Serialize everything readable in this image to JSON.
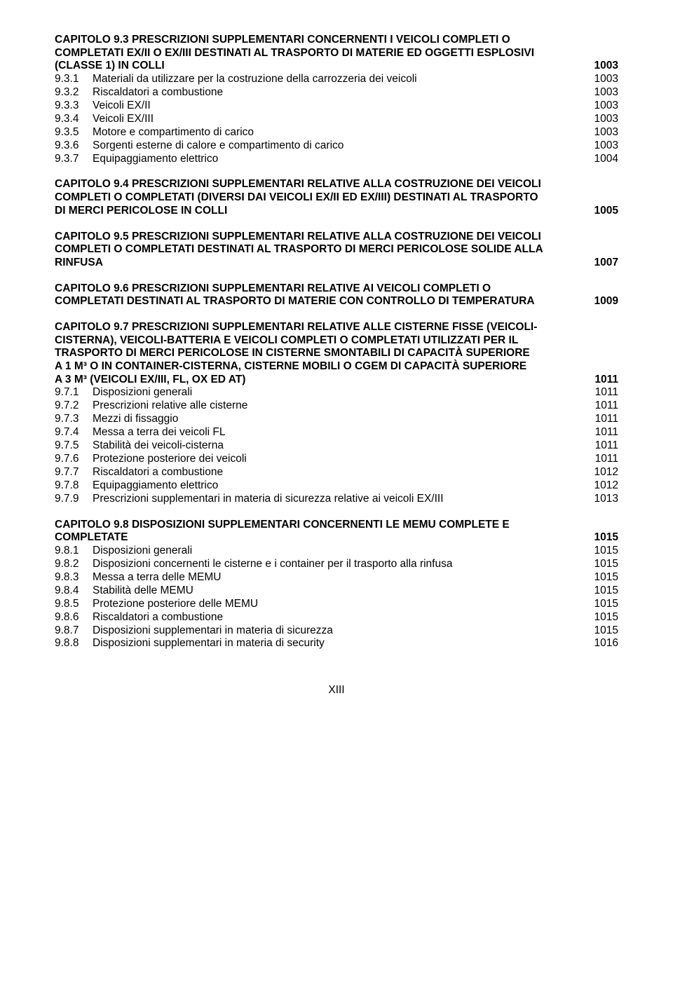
{
  "chapter93": {
    "heading_line1": "CAPITOLO 9.3 PRESCRIZIONI SUPPLEMENTARI CONCERNENTI I VEICOLI COMPLETI O",
    "heading_line2": "COMPLETATI EX/II O EX/III DESTINATI AL TRASPORTO DI MATERIE ED OGGETTI ESPLOSIVI",
    "heading_line3": "(CLASSE 1) IN COLLI",
    "heading_page": "1003",
    "items": [
      {
        "label": "9.3.1",
        "title": "Materiali da utilizzare per la costruzione della carrozzeria dei veicoli",
        "page": "1003"
      },
      {
        "label": "9.3.2",
        "title": "Riscaldatori a combustione",
        "page": "1003"
      },
      {
        "label": "9.3.3",
        "title": "Veicoli EX/II",
        "page": "1003"
      },
      {
        "label": "9.3.4",
        "title": "Veicoli EX/III",
        "page": "1003"
      },
      {
        "label": "9.3.5",
        "title": "Motore e compartimento di carico",
        "page": "1003"
      },
      {
        "label": "9.3.6",
        "title": "Sorgenti esterne di calore e compartimento di carico",
        "page": "1003"
      },
      {
        "label": "9.3.7",
        "title": "Equipaggiamento elettrico",
        "page": "1004"
      }
    ]
  },
  "chapter94": {
    "heading_line1": "CAPITOLO 9.4 PRESCRIZIONI SUPPLEMENTARI RELATIVE ALLA COSTRUZIONE DEI VEICOLI",
    "heading_line2": "COMPLETI O COMPLETATI (DIVERSI DAI VEICOLI EX/II ED EX/III) DESTINATI AL TRASPORTO",
    "heading_line3": "DI MERCI PERICOLOSE IN COLLI",
    "heading_page": "1005"
  },
  "chapter95": {
    "heading_line1": "CAPITOLO 9.5 PRESCRIZIONI SUPPLEMENTARI RELATIVE ALLA COSTRUZIONE DEI VEICOLI",
    "heading_line2": "COMPLETI O COMPLETATI DESTINATI AL TRASPORTO DI MERCI PERICOLOSE SOLIDE ALLA",
    "heading_line3": "RINFUSA",
    "heading_page": "1007"
  },
  "chapter96": {
    "heading_line1": "CAPITOLO 9.6 PRESCRIZIONI SUPPLEMENTARI RELATIVE AI VEICOLI COMPLETI O",
    "heading_line2": "COMPLETATI DESTINATI AL TRASPORTO DI MATERIE CON CONTROLLO DI TEMPERATURA",
    "heading_page": "1009"
  },
  "chapter97": {
    "heading_line1": "CAPITOLO 9.7 PRESCRIZIONI SUPPLEMENTARI RELATIVE ALLE CISTERNE FISSE (VEICOLI-",
    "heading_line2": "CISTERNA), VEICOLI-BATTERIA E VEICOLI COMPLETI O COMPLETATI UTILIZZATI PER IL",
    "heading_line3": "TRASPORTO DI MERCI PERICOLOSE IN CISTERNE SMONTABILI DI CAPACITÀ SUPERIORE",
    "heading_line4": "A 1 M³ O IN CONTAINER-CISTERNA, CISTERNE MOBILI O CGEM DI CAPACITÀ SUPERIORE",
    "heading_line5": "A 3 M³ (VEICOLI EX/III, FL, OX ED AT)",
    "heading_page": "1011",
    "items": [
      {
        "label": "9.7.1",
        "title": "Disposizioni generali",
        "page": "1011"
      },
      {
        "label": "9.7.2",
        "title": "Prescrizioni relative alle cisterne",
        "page": "1011"
      },
      {
        "label": "9.7.3",
        "title": "Mezzi di fissaggio",
        "page": "1011"
      },
      {
        "label": "9.7.4",
        "title": "Messa a terra dei veicoli FL",
        "page": "1011"
      },
      {
        "label": "9.7.5",
        "title": "Stabilità dei veicoli-cisterna",
        "page": "1011"
      },
      {
        "label": "9.7.6",
        "title": "Protezione posteriore dei veicoli",
        "page": "1011"
      },
      {
        "label": "9.7.7",
        "title": "Riscaldatori a combustione",
        "page": "1012"
      },
      {
        "label": "9.7.8",
        "title": "Equipaggiamento elettrico",
        "page": "1012"
      },
      {
        "label": "9.7.9",
        "title": "Prescrizioni supplementari in materia di sicurezza relative ai veicoli EX/III",
        "page": "1013"
      }
    ]
  },
  "chapter98": {
    "heading_line1": "CAPITOLO 9.8 DISPOSIZIONI SUPPLEMENTARI CONCERNENTI  LE MEMU COMPLETE E",
    "heading_line2": "COMPLETATE",
    "heading_page": "1015",
    "items": [
      {
        "label": "9.8.1",
        "title": "Disposizioni generali",
        "page": "1015"
      },
      {
        "label": "9.8.2",
        "title": "Disposizioni concernenti le cisterne e i container per il trasporto alla rinfusa",
        "page": "1015"
      },
      {
        "label": "9.8.3",
        "title": "Messa a terra delle MEMU",
        "page": "1015"
      },
      {
        "label": "9.8.4",
        "title": "Stabilità delle MEMU",
        "page": "1015"
      },
      {
        "label": "9.8.5",
        "title": "Protezione posteriore delle MEMU",
        "page": "1015"
      },
      {
        "label": "9.8.6",
        "title": "Riscaldatori a combustione",
        "page": "1015"
      },
      {
        "label": "9.8.7",
        "title": "Disposizioni supplementari in materia di sicurezza",
        "page": "1015"
      },
      {
        "label": "9.8.8",
        "title": "Disposizioni supplementari in materia di security",
        "page": "1016"
      }
    ]
  },
  "page_number": "XIII"
}
